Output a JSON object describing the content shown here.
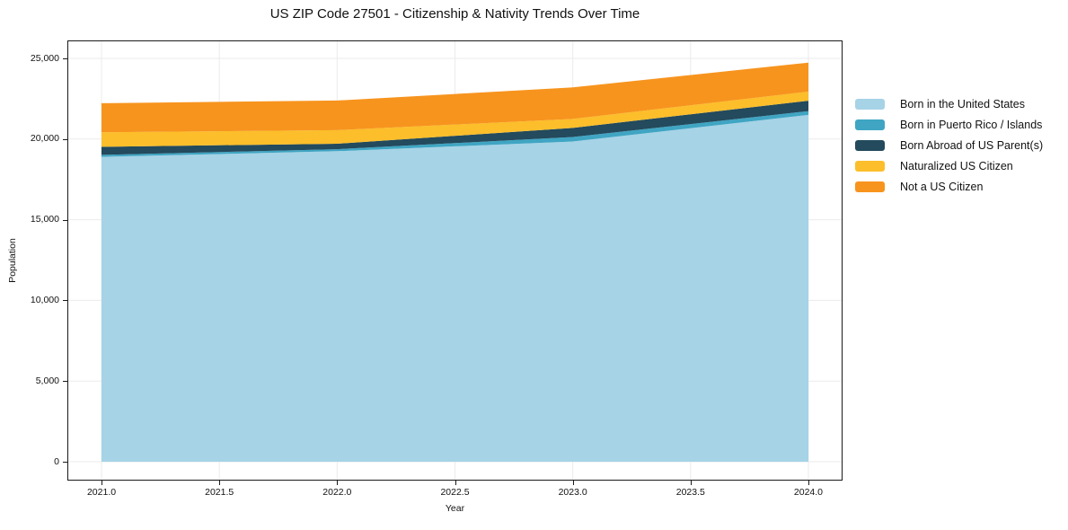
{
  "chart": {
    "title": "US ZIP Code 27501 - Citizenship & Nativity Trends Over Time",
    "xlabel": "Year",
    "ylabel": "Population"
  },
  "chart_data": {
    "type": "area",
    "stacked": true,
    "title": "US ZIP Code 27501 - Citizenship & Nativity Trends Over Time",
    "xlabel": "Year",
    "ylabel": "Population",
    "x": [
      2021,
      2022,
      2023,
      2024
    ],
    "series": [
      {
        "name": "Born in the United States",
        "color": "#a6d3e6",
        "values": [
          18900,
          19250,
          19850,
          21500
        ]
      },
      {
        "name": "Born in Puerto Rico / Islands",
        "color": "#3fa5c3",
        "values": [
          120,
          120,
          280,
          230
        ]
      },
      {
        "name": "Born Abroad of US Parent(s)",
        "color": "#234a5d",
        "values": [
          500,
          340,
          560,
          650
        ]
      },
      {
        "name": "Naturalized US Citizen",
        "color": "#fcbe2a",
        "values": [
          900,
          840,
          560,
          560
        ]
      },
      {
        "name": "Not a US Citizen",
        "color": "#f7941e",
        "values": [
          1800,
          1840,
          1950,
          1800
        ]
      }
    ],
    "totals": [
      22220,
      22390,
      23200,
      24740
    ],
    "x_ticks": [
      "2021.0",
      "2021.5",
      "2022.0",
      "2022.5",
      "2023.0",
      "2023.5",
      "2024.0"
    ],
    "x_tick_values": [
      2021,
      2021.5,
      2022,
      2022.5,
      2023,
      2023.5,
      2024
    ],
    "y_ticks": [
      "0",
      "5,000",
      "10,000",
      "15,000",
      "20,000",
      "25,000"
    ],
    "y_tick_values": [
      0,
      5000,
      10000,
      15000,
      20000,
      25000
    ],
    "xlim": [
      2020.855,
      2024.145
    ],
    "ylim": [
      -1169,
      26114
    ],
    "grid": true,
    "grid_color": "#ebebeb",
    "spine_color": "#1a1a1a",
    "legend_position": "right"
  }
}
